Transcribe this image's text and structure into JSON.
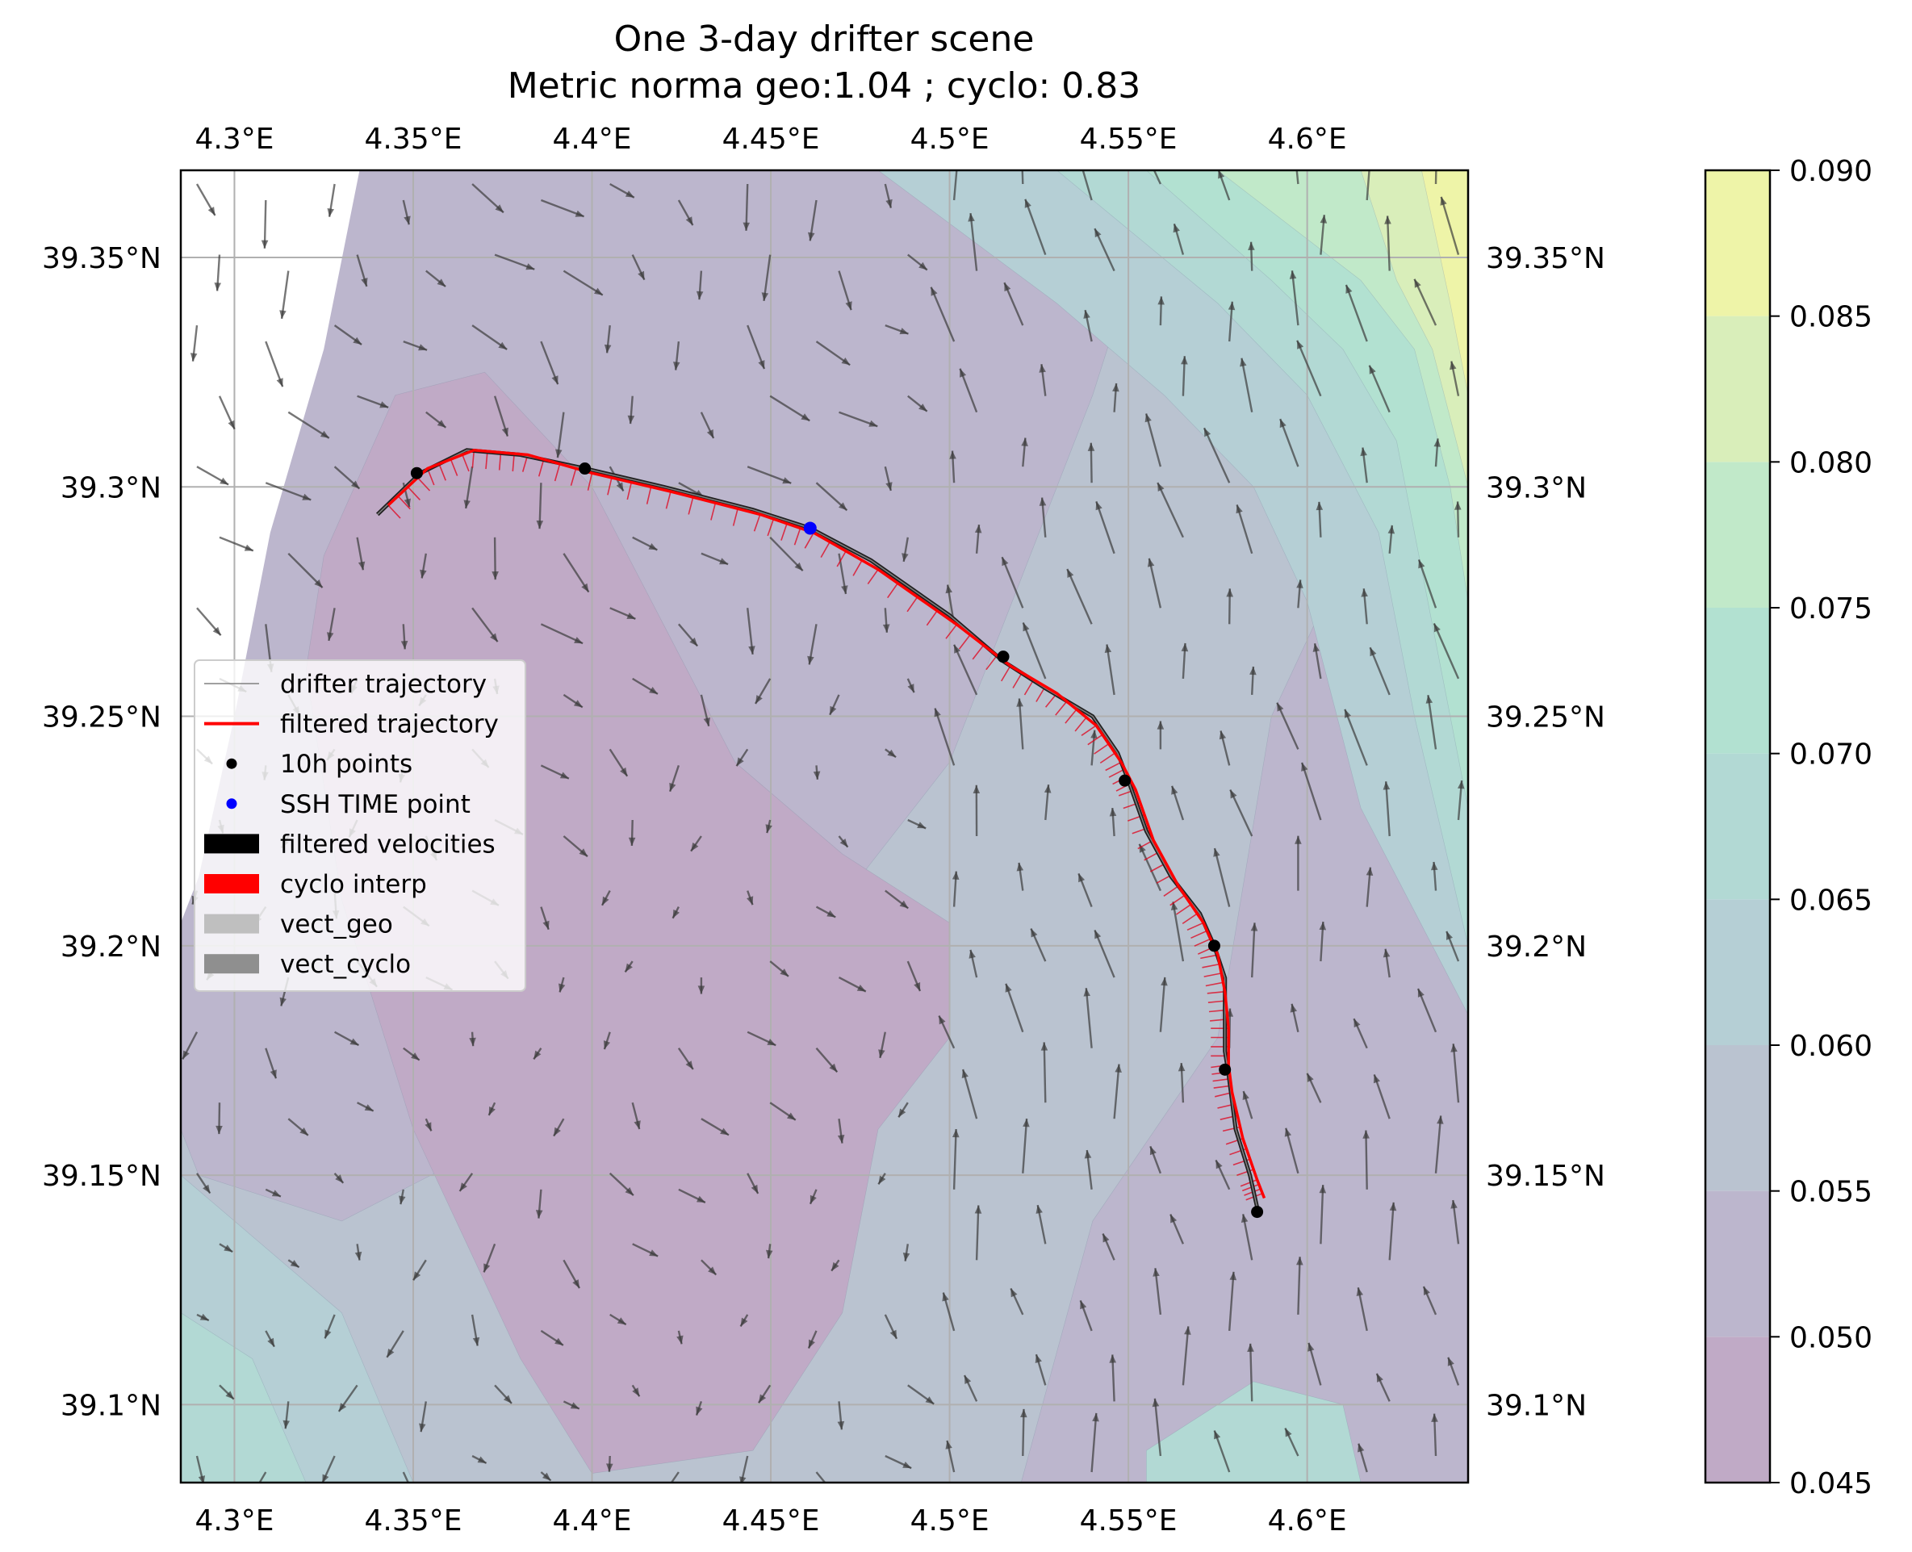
{
  "chart_data": {
    "type": "map",
    "title_line1": "One 3-day drifter scene",
    "title_line2": "Metric norma geo:1.04 ; cyclo: 0.83",
    "lon_range": [
      4.285,
      4.645
    ],
    "lat_range": [
      39.083,
      39.369
    ],
    "lon_ticks": [
      {
        "value": 4.3,
        "label": "4.3°E"
      },
      {
        "value": 4.35,
        "label": "4.35°E"
      },
      {
        "value": 4.4,
        "label": "4.4°E"
      },
      {
        "value": 4.45,
        "label": "4.45°E"
      },
      {
        "value": 4.5,
        "label": "4.5°E"
      },
      {
        "value": 4.55,
        "label": "4.55°E"
      },
      {
        "value": 4.6,
        "label": "4.6°E"
      }
    ],
    "lat_ticks": [
      {
        "value": 39.1,
        "label": "39.1°N"
      },
      {
        "value": 39.15,
        "label": "39.15°N"
      },
      {
        "value": 39.2,
        "label": "39.2°N"
      },
      {
        "value": 39.25,
        "label": "39.25°N"
      },
      {
        "value": 39.3,
        "label": "39.3°N"
      },
      {
        "value": 39.35,
        "label": "39.35°N"
      }
    ],
    "grid": true,
    "colorbar": {
      "min": 0.045,
      "max": 0.09,
      "ticks": [
        "0.045",
        "0.050",
        "0.055",
        "0.060",
        "0.065",
        "0.070",
        "0.075",
        "0.080",
        "0.085",
        "0.090"
      ],
      "levels": [
        {
          "from": 0.045,
          "to": 0.05,
          "color": "#c0aac6"
        },
        {
          "from": 0.05,
          "to": 0.055,
          "color": "#bcb6cd"
        },
        {
          "from": 0.055,
          "to": 0.06,
          "color": "#bac3d0"
        },
        {
          "from": 0.06,
          "to": 0.065,
          "color": "#b5cfd5"
        },
        {
          "from": 0.065,
          "to": 0.07,
          "color": "#b2d9d4"
        },
        {
          "from": 0.07,
          "to": 0.075,
          "color": "#b2e1d1"
        },
        {
          "from": 0.075,
          "to": 0.08,
          "color": "#c1e9c9"
        },
        {
          "from": 0.08,
          "to": 0.085,
          "color": "#d9eeba"
        },
        {
          "from": 0.085,
          "to": 0.09,
          "color": "#eef4a8"
        }
      ]
    },
    "field_regions": [
      {
        "level": 1,
        "points": [
          [
            4.285,
            39.369
          ],
          [
            4.645,
            39.369
          ],
          [
            4.645,
            39.083
          ],
          [
            4.285,
            39.083
          ]
        ]
      },
      {
        "level": 2,
        "points": [
          [
            4.285,
            39.369
          ],
          [
            4.64,
            39.369
          ],
          [
            4.62,
            39.3
          ],
          [
            4.59,
            39.25
          ],
          [
            4.575,
            39.18
          ],
          [
            4.54,
            39.14
          ],
          [
            4.52,
            39.083
          ],
          [
            4.285,
            39.083
          ]
        ]
      },
      {
        "level": 1,
        "points": [
          [
            4.285,
            39.369
          ],
          [
            4.56,
            39.369
          ],
          [
            4.54,
            39.32
          ],
          [
            4.52,
            39.28
          ],
          [
            4.5,
            39.24
          ],
          [
            4.46,
            39.2
          ],
          [
            4.42,
            39.175
          ],
          [
            4.38,
            39.16
          ],
          [
            4.33,
            39.14
          ],
          [
            4.29,
            39.15
          ],
          [
            4.285,
            39.16
          ]
        ]
      },
      {
        "level": 0,
        "points": [
          [
            4.325,
            39.285
          ],
          [
            4.345,
            39.32
          ],
          [
            4.37,
            39.325
          ],
          [
            4.4,
            39.3
          ],
          [
            4.42,
            39.27
          ],
          [
            4.44,
            39.24
          ],
          [
            4.47,
            39.22
          ],
          [
            4.5,
            39.205
          ],
          [
            4.5,
            39.18
          ],
          [
            4.48,
            39.16
          ],
          [
            4.47,
            39.12
          ],
          [
            4.445,
            39.09
          ],
          [
            4.4,
            39.085
          ],
          [
            4.38,
            39.11
          ],
          [
            4.35,
            39.16
          ],
          [
            4.33,
            39.21
          ],
          [
            4.32,
            39.26
          ]
        ]
      },
      {
        "level": 3,
        "points": [
          [
            4.48,
            39.369
          ],
          [
            4.645,
            39.369
          ],
          [
            4.645,
            39.185
          ],
          [
            4.615,
            39.23
          ],
          [
            4.6,
            39.275
          ],
          [
            4.585,
            39.3
          ],
          [
            4.56,
            39.32
          ],
          [
            4.53,
            39.34
          ]
        ]
      },
      {
        "level": 4,
        "points": [
          [
            4.53,
            39.369
          ],
          [
            4.645,
            39.369
          ],
          [
            4.645,
            39.2
          ],
          [
            4.63,
            39.25
          ],
          [
            4.62,
            39.29
          ],
          [
            4.6,
            39.32
          ],
          [
            4.575,
            39.34
          ]
        ]
      },
      {
        "level": 5,
        "points": [
          [
            4.555,
            39.369
          ],
          [
            4.645,
            39.369
          ],
          [
            4.645,
            39.23
          ],
          [
            4.635,
            39.27
          ],
          [
            4.625,
            39.31
          ],
          [
            4.61,
            39.33
          ],
          [
            4.59,
            39.345
          ]
        ]
      },
      {
        "level": 6,
        "points": [
          [
            4.575,
            39.369
          ],
          [
            4.645,
            39.369
          ],
          [
            4.645,
            39.275
          ],
          [
            4.64,
            39.3
          ],
          [
            4.63,
            39.33
          ],
          [
            4.615,
            39.345
          ]
        ]
      },
      {
        "level": 7,
        "points": [
          [
            4.615,
            39.369
          ],
          [
            4.645,
            39.369
          ],
          [
            4.645,
            39.3
          ],
          [
            4.635,
            39.33
          ],
          [
            4.625,
            39.345
          ]
        ]
      },
      {
        "level": 8,
        "points": [
          [
            4.632,
            39.369
          ],
          [
            4.645,
            39.369
          ],
          [
            4.645,
            39.32
          ],
          [
            4.64,
            39.34
          ]
        ]
      },
      {
        "level": 4,
        "points": [
          [
            4.555,
            39.09
          ],
          [
            4.585,
            39.105
          ],
          [
            4.61,
            39.1
          ],
          [
            4.615,
            39.083
          ],
          [
            4.555,
            39.083
          ]
        ]
      },
      {
        "level": 3,
        "points": [
          [
            4.285,
            39.083
          ],
          [
            4.35,
            39.083
          ],
          [
            4.33,
            39.12
          ],
          [
            4.3,
            39.14
          ],
          [
            4.285,
            39.15
          ]
        ]
      },
      {
        "level": 4,
        "points": [
          [
            4.285,
            39.083
          ],
          [
            4.32,
            39.083
          ],
          [
            4.305,
            39.11
          ],
          [
            4.285,
            39.12
          ]
        ]
      }
    ],
    "land_mask": [
      [
        4.285,
        39.369
      ],
      [
        4.335,
        39.369
      ],
      [
        4.325,
        39.33
      ],
      [
        4.31,
        39.29
      ],
      [
        4.3,
        39.25
      ],
      [
        4.29,
        39.215
      ],
      [
        4.285,
        39.205
      ]
    ],
    "drifter_trajectory": [
      [
        4.34,
        39.294
      ],
      [
        4.352,
        39.303
      ],
      [
        4.365,
        39.308
      ],
      [
        4.38,
        39.307
      ],
      [
        4.398,
        39.304
      ],
      [
        4.42,
        39.3
      ],
      [
        4.445,
        39.295
      ],
      [
        4.461,
        39.291
      ],
      [
        4.478,
        39.284
      ],
      [
        4.5,
        39.272
      ],
      [
        4.515,
        39.262
      ],
      [
        4.527,
        39.256
      ],
      [
        4.54,
        39.25
      ],
      [
        4.547,
        39.242
      ],
      [
        4.55,
        39.236
      ],
      [
        4.555,
        39.225
      ],
      [
        4.562,
        39.215
      ],
      [
        4.57,
        39.207
      ],
      [
        4.574,
        39.2
      ],
      [
        4.577,
        39.193
      ],
      [
        4.577,
        39.185
      ],
      [
        4.577,
        39.177
      ],
      [
        4.578,
        39.172
      ],
      [
        4.58,
        39.16
      ],
      [
        4.584,
        39.15
      ],
      [
        4.586,
        39.143
      ]
    ],
    "filtered_trajectory": [
      [
        4.343,
        39.296
      ],
      [
        4.354,
        39.304
      ],
      [
        4.367,
        39.308
      ],
      [
        4.382,
        39.307
      ],
      [
        4.4,
        39.303
      ],
      [
        4.422,
        39.299
      ],
      [
        4.447,
        39.294
      ],
      [
        4.462,
        39.29
      ],
      [
        4.48,
        39.282
      ],
      [
        4.502,
        39.27
      ],
      [
        4.517,
        39.261
      ],
      [
        4.53,
        39.255
      ],
      [
        4.541,
        39.248
      ],
      [
        4.548,
        39.24
      ],
      [
        4.552,
        39.234
      ],
      [
        4.557,
        39.223
      ],
      [
        4.564,
        39.213
      ],
      [
        4.571,
        39.205
      ],
      [
        4.575,
        39.198
      ],
      [
        4.577,
        39.19
      ],
      [
        4.578,
        39.182
      ],
      [
        4.578,
        39.174
      ],
      [
        4.579,
        39.168
      ],
      [
        4.582,
        39.158
      ],
      [
        4.586,
        39.149
      ],
      [
        4.588,
        39.145
      ]
    ],
    "points_10h": [
      [
        4.351,
        39.303
      ],
      [
        4.398,
        39.304
      ],
      [
        4.515,
        39.263
      ],
      [
        4.549,
        39.236
      ],
      [
        4.574,
        39.2
      ],
      [
        4.577,
        39.173
      ],
      [
        4.586,
        39.142
      ]
    ],
    "ssh_time_point": [
      4.461,
      39.291
    ],
    "legend": {
      "entries": [
        {
          "label": "drifter trajectory",
          "marker": "thin-line",
          "color": "#808080"
        },
        {
          "label": "filtered trajectory",
          "marker": "line",
          "color": "#ff0000"
        },
        {
          "label": "10h points",
          "marker": "dot",
          "color": "#000000"
        },
        {
          "label": "SSH TIME point",
          "marker": "dot",
          "color": "#0000ff"
        },
        {
          "label": "filtered velocities",
          "marker": "patch",
          "color": "#000000"
        },
        {
          "label": "cyclo interp",
          "marker": "patch",
          "color": "#ff0000"
        },
        {
          "label": "vect_geo",
          "marker": "patch",
          "color": "#bfbfbf"
        },
        {
          "label": "vect_cyclo",
          "marker": "patch",
          "color": "#8f8f8f"
        }
      ],
      "placement": "center-left"
    }
  }
}
